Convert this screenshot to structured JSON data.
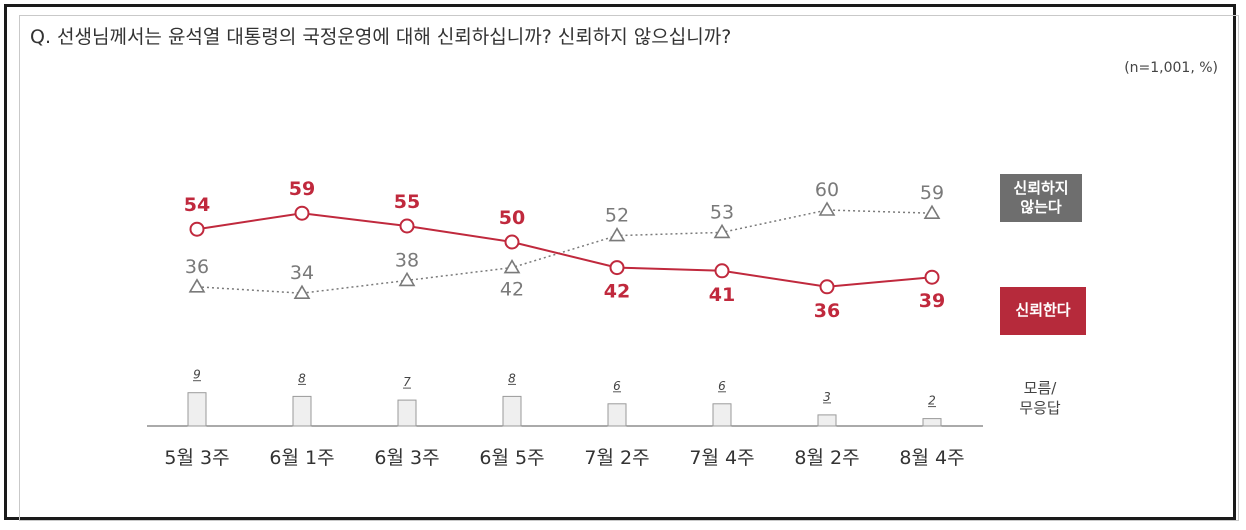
{
  "question": "Q. 선생님께서는 윤석열 대통령의 국정운영에 대해 신뢰하십니까? 신뢰하지 않으십니까?",
  "note": "(n=1,001, %)",
  "legend": {
    "distrust_line1": "신뢰하지",
    "distrust_line2": "않는다",
    "trust": "신뢰한다",
    "unknown_line1": "모름/",
    "unknown_line2": "무응답"
  },
  "colors": {
    "trust": "#c0293d",
    "distrust": "#7a7a7a",
    "unknown_bar": "#efefef",
    "unknown_bar_stroke": "#9a9a9a"
  },
  "chart_data": {
    "type": "line",
    "categories": [
      "5월 3주",
      "6월 1주",
      "6월 3주",
      "6월 5주",
      "7월 2주",
      "7월 4주",
      "8월 2주",
      "8월 4주"
    ],
    "series": [
      {
        "name": "신뢰한다",
        "values": [
          54,
          59,
          55,
          50,
          42,
          41,
          36,
          39
        ],
        "style": "solid-circle-markers"
      },
      {
        "name": "신뢰하지 않는다",
        "values": [
          36,
          34,
          38,
          42,
          52,
          53,
          60,
          59
        ],
        "style": "dotted-triangle-markers"
      },
      {
        "name": "모름/무응답",
        "values": [
          9,
          8,
          7,
          8,
          6,
          6,
          3,
          2
        ],
        "style": "bar"
      }
    ],
    "grid": false,
    "legend_placement": "right"
  }
}
